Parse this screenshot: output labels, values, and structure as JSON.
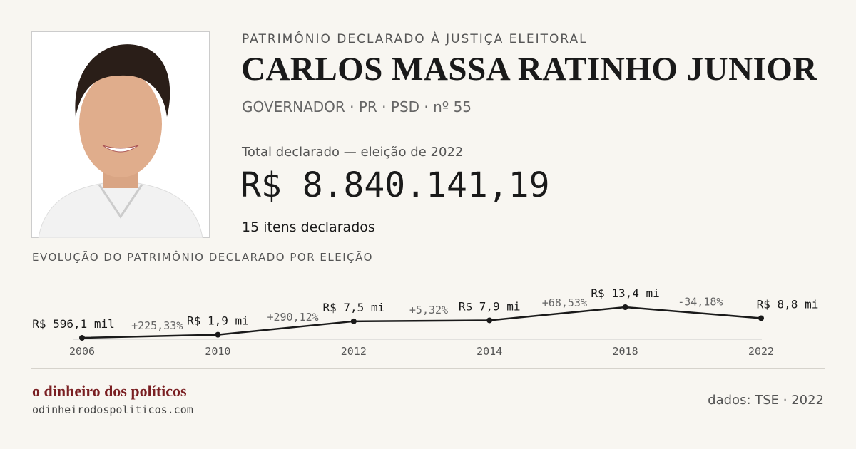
{
  "header": {
    "kicker": "PATRIMÔNIO  DECLARADO À JUSTIÇA ELEITORAL",
    "name": "CARLOS MASSA RATINHO JUNIOR",
    "role": "GOVERNADOR · PR · PSD · nº 55"
  },
  "total": {
    "label": "Total declarado — eleição de 2022",
    "value": "R$ 8.840.141,19",
    "items": "15 itens declarados"
  },
  "chart_data": {
    "type": "line",
    "title": "EVOLUÇÃO DO PATRIMÔNIO  DECLARADO POR ELEIÇÃO",
    "categories": [
      "2006",
      "2010",
      "2012",
      "2014",
      "2018",
      "2022"
    ],
    "series": [
      {
        "color": "#1a1a1a",
        "values": [
          596100,
          1900000,
          7500000,
          7900000,
          13400000,
          8800000
        ],
        "value_labels": [
          "R$ 596,1 mil",
          "R$ 1,9 mi",
          "R$ 7,5 mi",
          "R$ 7,9 mi",
          "R$ 13,4 mi",
          "R$ 8,8 mi"
        ]
      }
    ],
    "change_labels": [
      "+225,33%",
      "+290,12%",
      "+5,32%",
      "+68,53%",
      "-34,18%"
    ]
  },
  "footer": {
    "brand": "o dinheiro dos políticos",
    "url": "odinheirodospoliticos.com",
    "source": "dados: TSE · 2022"
  }
}
